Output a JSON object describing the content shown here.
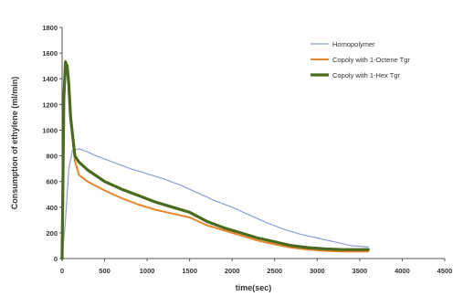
{
  "chart_data": {
    "type": "line",
    "xlabel": "time(sec)",
    "ylabel": "Consumption of ethylene (ml/min)",
    "xlim": [
      0,
      4500
    ],
    "ylim": [
      0,
      1800
    ],
    "x_ticks": [
      0,
      500,
      1000,
      1500,
      2000,
      2500,
      3000,
      3500,
      4000,
      4500
    ],
    "y_ticks": [
      0,
      200,
      400,
      600,
      800,
      1000,
      1200,
      1400,
      1600,
      1800
    ],
    "grid": false,
    "legend_position": "top-right",
    "series": [
      {
        "name": "Homopolymer",
        "color": "#8e9dd4",
        "x": [
          0,
          40,
          80,
          120,
          200,
          300,
          400,
          600,
          800,
          1000,
          1200,
          1400,
          1600,
          1800,
          2000,
          2200,
          2400,
          2600,
          2800,
          3000,
          3200,
          3400,
          3600
        ],
        "y": [
          0,
          300,
          700,
          840,
          855,
          830,
          800,
          750,
          700,
          660,
          620,
          570,
          510,
          450,
          400,
          340,
          280,
          230,
          190,
          160,
          130,
          100,
          90
        ]
      },
      {
        "name": "Copoly with 1-Octene Tgr",
        "color": "#e8852b",
        "x": [
          0,
          20,
          40,
          60,
          80,
          100,
          150,
          200,
          300,
          500,
          700,
          900,
          1100,
          1300,
          1500,
          1700,
          1900,
          2100,
          2300,
          2500,
          2700,
          2900,
          3100,
          3300,
          3500,
          3600
        ],
        "y": [
          0,
          1300,
          1540,
          1490,
          1390,
          1150,
          760,
          650,
          600,
          530,
          470,
          420,
          380,
          350,
          320,
          260,
          220,
          180,
          140,
          110,
          85,
          70,
          60,
          55,
          55,
          55
        ]
      },
      {
        "name": "Copoly with 1-Hex Tgr",
        "color": "#4a6b1e",
        "x": [
          0,
          20,
          40,
          60,
          80,
          100,
          150,
          200,
          300,
          500,
          700,
          900,
          1100,
          1300,
          1500,
          1700,
          1900,
          2100,
          2300,
          2500,
          2700,
          2900,
          3100,
          3300,
          3500,
          3600
        ],
        "y": [
          0,
          1250,
          1530,
          1500,
          1350,
          1100,
          800,
          750,
          690,
          600,
          540,
          490,
          440,
          400,
          360,
          290,
          240,
          200,
          160,
          130,
          100,
          85,
          75,
          70,
          70,
          70
        ]
      }
    ]
  }
}
